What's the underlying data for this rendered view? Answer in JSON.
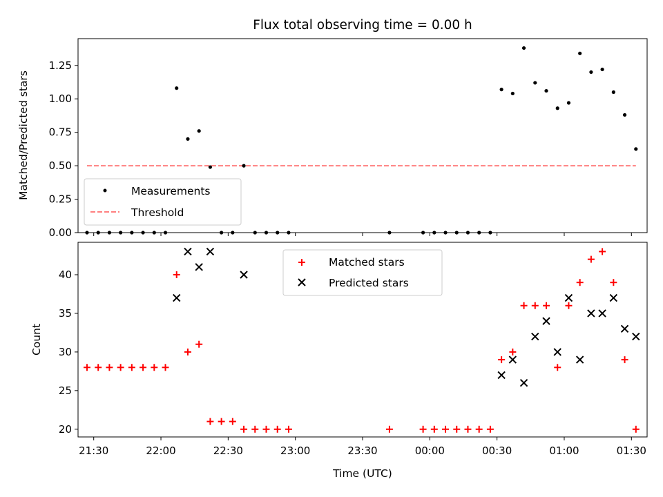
{
  "chart_data": {
    "title": "Flux total observing time = 0.00 h",
    "xlabel": "Time (UTC)",
    "x_ticks": [
      "21:30",
      "22:00",
      "22:30",
      "23:00",
      "23:30",
      "00:00",
      "00:30",
      "01:00",
      "01:30"
    ],
    "x_tick_minutes": [
      0,
      30,
      60,
      90,
      120,
      150,
      180,
      210,
      240
    ],
    "xlim": [
      -7,
      247
    ],
    "times": [
      "21:27",
      "21:32",
      "21:37",
      "21:42",
      "21:47",
      "21:52",
      "21:57",
      "22:02",
      "22:07",
      "22:12",
      "22:17",
      "22:22",
      "22:27",
      "22:32",
      "22:37",
      "22:42",
      "22:47",
      "22:52",
      "22:57",
      "23:42",
      "23:57",
      "00:02",
      "00:07",
      "00:12",
      "00:17",
      "00:22",
      "00:27",
      "00:32",
      "00:37",
      "00:42",
      "00:47",
      "00:52",
      "00:57",
      "01:02",
      "01:07",
      "01:12",
      "01:17",
      "01:22",
      "01:27",
      "01:32"
    ],
    "x": [
      -3,
      2,
      7,
      12,
      17,
      22,
      27,
      32,
      37,
      42,
      47,
      52,
      57,
      62,
      67,
      72,
      77,
      82,
      87,
      132,
      147,
      152,
      157,
      162,
      167,
      172,
      177,
      182,
      187,
      192,
      197,
      202,
      207,
      212,
      217,
      222,
      227,
      232,
      237,
      242
    ],
    "panels": [
      {
        "type": "scatter",
        "ylabel": "Matched/Predicted stars",
        "ylim": [
          0,
          1.45
        ],
        "y_ticks": [
          "0.00",
          "0.25",
          "0.50",
          "0.75",
          "1.00",
          "1.25"
        ],
        "y_tick_values": [
          0,
          0.25,
          0.5,
          0.75,
          1.0,
          1.25
        ],
        "legend_position": "lower-left",
        "series": [
          {
            "name": "Measurements",
            "marker": "dot",
            "color": "#000000",
            "y": [
              0,
              0,
              0,
              0,
              0,
              0,
              0,
              0,
              1.08,
              0.7,
              0.76,
              0.49,
              0,
              0,
              0.5,
              0,
              0,
              0,
              0,
              0,
              0,
              0,
              0,
              0,
              0,
              0,
              0,
              1.07,
              1.04,
              1.38,
              1.12,
              1.06,
              0.93,
              0.97,
              1.34,
              1.2,
              1.22,
              1.05,
              0.88,
              0.625
            ]
          },
          {
            "name": "Threshold",
            "type": "line",
            "style": "dashed",
            "color": "#ff7f7f",
            "x": [
              -3,
              242
            ],
            "y": [
              0.5,
              0.5
            ]
          }
        ]
      },
      {
        "type": "scatter",
        "ylabel": "Count",
        "ylim": [
          19,
          44.2
        ],
        "y_ticks": [
          "20",
          "25",
          "30",
          "35",
          "40"
        ],
        "y_tick_values": [
          20,
          25,
          30,
          35,
          40
        ],
        "legend_position": "upper-center",
        "series": [
          {
            "name": "Matched stars",
            "marker": "plus",
            "color": "#ff0000",
            "y": [
              28,
              28,
              28,
              28,
              28,
              28,
              28,
              28,
              40,
              30,
              31,
              21,
              21,
              21,
              20,
              20,
              20,
              20,
              20,
              20,
              20,
              20,
              20,
              20,
              20,
              20,
              20,
              29,
              30,
              36,
              36,
              36,
              28,
              36,
              39,
              42,
              43,
              39,
              29,
              20
            ]
          },
          {
            "name": "Predicted stars",
            "marker": "x",
            "color": "#000000",
            "points": [
              [
                37,
                37
              ],
              [
                42,
                43
              ],
              [
                47,
                41
              ],
              [
                52,
                43
              ],
              [
                67,
                40
              ],
              [
                182,
                27
              ],
              [
                187,
                29
              ],
              [
                192,
                26
              ],
              [
                197,
                32
              ],
              [
                202,
                34
              ],
              [
                207,
                30
              ],
              [
                212,
                37
              ],
              [
                217,
                29
              ],
              [
                222,
                35
              ],
              [
                227,
                35
              ],
              [
                232,
                37
              ],
              [
                237,
                33
              ],
              [
                242,
                32
              ]
            ]
          }
        ]
      }
    ]
  }
}
